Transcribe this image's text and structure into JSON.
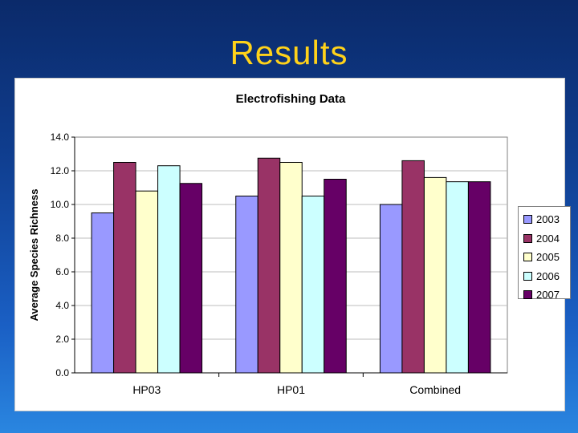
{
  "slide": {
    "title": "Results"
  },
  "colors": {
    "2003": "#9999ff",
    "2004": "#993366",
    "2005": "#ffffcc",
    "2006": "#ccffff",
    "2007": "#660066"
  },
  "chart_data": {
    "type": "bar",
    "title": "Electrofishing Data",
    "xlabel": "",
    "ylabel": "Average Species Richness",
    "ylim": [
      0,
      14
    ],
    "yticks": [
      "0.0",
      "2.0",
      "4.0",
      "6.0",
      "8.0",
      "10.0",
      "12.0",
      "14.0"
    ],
    "categories": [
      "HP03",
      "HP01",
      "Combined"
    ],
    "series": [
      {
        "name": "2003",
        "values": [
          9.5,
          10.5,
          10.0
        ]
      },
      {
        "name": "2004",
        "values": [
          12.5,
          12.75,
          12.6
        ]
      },
      {
        "name": "2005",
        "values": [
          10.8,
          12.5,
          11.6
        ]
      },
      {
        "name": "2006",
        "values": [
          12.3,
          10.5,
          11.35
        ]
      },
      {
        "name": "2007",
        "values": [
          11.25,
          11.5,
          11.35
        ]
      }
    ],
    "legend": "right",
    "grid": true
  }
}
